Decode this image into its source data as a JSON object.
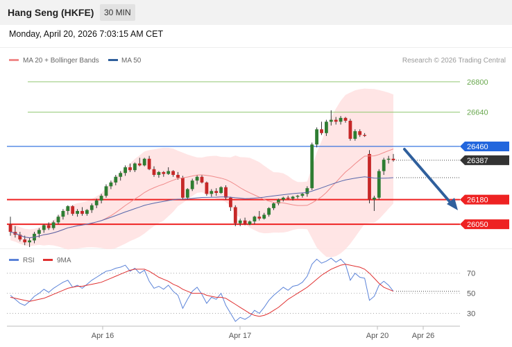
{
  "header": {
    "title": "Hang Seng (HKFE)",
    "interval": "30 MIN",
    "datetime": "Monday, April 20, 2026 7:03:15 AM CET"
  },
  "legend": {
    "bollinger": "MA 20 + Bollinger Bands",
    "ma50": "MA 50",
    "credit": "Research © 2026 Trading Central"
  },
  "rsi_legend": {
    "rsi": "RSI",
    "ma9": "9MA"
  },
  "colors": {
    "bull": "#2e7d32",
    "bear": "#c62828",
    "band_fill": "#ffe0e0",
    "ma20": "#f08a8a",
    "ma50": "#5566aa",
    "resistance": "#90c870",
    "pivot": "#2266dd",
    "support": "#ee2222",
    "arrow": "#2f5f9c",
    "rsi": "#5a82d8",
    "rsi_ma": "#e03030"
  },
  "chart_data": [
    {
      "type": "candlestick",
      "title": "Hang Seng (HKFE)",
      "ylim": [
        25930,
        26880
      ],
      "x_ticks": [
        "Apr 16",
        "Apr 17",
        "Apr 20",
        "Apr 26"
      ],
      "levels": [
        {
          "label": "26800",
          "value": 26800,
          "kind": "resistance"
        },
        {
          "label": "26640",
          "value": 26640,
          "kind": "resistance"
        },
        {
          "label": "26460",
          "value": 26460,
          "kind": "pivot"
        },
        {
          "label": "26387",
          "value": 26387,
          "kind": "last"
        },
        {
          "label": "26180",
          "value": 26180,
          "kind": "support"
        },
        {
          "label": "26050",
          "value": 26050,
          "kind": "support"
        }
      ],
      "ohlc": [
        [
          26050,
          26090,
          25990,
          26010
        ],
        [
          26010,
          26040,
          25980,
          25995
        ],
        [
          25995,
          26010,
          25960,
          25970
        ],
        [
          25970,
          25990,
          25940,
          25955
        ],
        [
          25955,
          25980,
          25930,
          25965
        ],
        [
          25965,
          26010,
          25950,
          26000
        ],
        [
          26000,
          26030,
          25980,
          26020
        ],
        [
          26020,
          26050,
          26005,
          26045
        ],
        [
          26045,
          26060,
          26020,
          26030
        ],
        [
          26030,
          26070,
          26020,
          26060
        ],
        [
          26060,
          26100,
          26050,
          26090
        ],
        [
          26090,
          26130,
          26075,
          26120
        ],
        [
          26120,
          26150,
          26100,
          26145
        ],
        [
          26145,
          26150,
          26095,
          26105
        ],
        [
          26105,
          26130,
          26090,
          26120
        ],
        [
          26120,
          26140,
          26095,
          26105
        ],
        [
          26105,
          26130,
          26095,
          26125
        ],
        [
          26125,
          26160,
          26110,
          26150
        ],
        [
          26150,
          26185,
          26135,
          26175
        ],
        [
          26175,
          26210,
          26160,
          26200
        ],
        [
          26200,
          26260,
          26190,
          26250
        ],
        [
          26250,
          26280,
          26235,
          26270
        ],
        [
          26270,
          26310,
          26255,
          26300
        ],
        [
          26300,
          26330,
          26280,
          26320
        ],
        [
          26320,
          26360,
          26305,
          26350
        ],
        [
          26350,
          26370,
          26325,
          26335
        ],
        [
          26335,
          26375,
          26325,
          26370
        ],
        [
          26370,
          26400,
          26355,
          26360
        ],
        [
          26360,
          26400,
          26355,
          26395
        ],
        [
          26395,
          26410,
          26335,
          26340
        ],
        [
          26340,
          26355,
          26300,
          26310
        ],
        [
          26310,
          26330,
          26295,
          26325
        ],
        [
          26325,
          26330,
          26300,
          26315
        ],
        [
          26315,
          26350,
          26310,
          26330
        ],
        [
          26330,
          26335,
          26300,
          26310
        ],
        [
          26310,
          26325,
          26285,
          26295
        ],
        [
          26295,
          26305,
          26180,
          26190
        ],
        [
          26190,
          26240,
          26180,
          26235
        ],
        [
          26235,
          26290,
          26225,
          26280
        ],
        [
          26280,
          26310,
          26260,
          26300
        ],
        [
          26300,
          26310,
          26265,
          26270
        ],
        [
          26270,
          26275,
          26200,
          26210
        ],
        [
          26210,
          26235,
          26195,
          26225
        ],
        [
          26225,
          26240,
          26200,
          26215
        ],
        [
          26215,
          26250,
          26210,
          26245
        ],
        [
          26245,
          26255,
          26180,
          26190
        ],
        [
          26190,
          26195,
          26120,
          26140
        ],
        [
          26140,
          26150,
          26040,
          26055
        ],
        [
          26055,
          26080,
          26040,
          26070
        ],
        [
          26070,
          26085,
          26045,
          26050
        ],
        [
          26050,
          26070,
          26045,
          26065
        ],
        [
          26065,
          26095,
          26050,
          26090
        ],
        [
          26090,
          26120,
          26070,
          26080
        ],
        [
          26080,
          26110,
          26075,
          26100
        ],
        [
          26100,
          26140,
          26090,
          26135
        ],
        [
          26135,
          26165,
          26125,
          26160
        ],
        [
          26160,
          26185,
          26150,
          26180
        ],
        [
          26180,
          26195,
          26170,
          26190
        ],
        [
          26190,
          26200,
          26180,
          26185
        ],
        [
          26185,
          26200,
          26175,
          26195
        ],
        [
          26195,
          26205,
          26185,
          26200
        ],
        [
          26200,
          26215,
          26190,
          26210
        ],
        [
          26210,
          26250,
          26195,
          26240
        ],
        [
          26240,
          26480,
          26230,
          26470
        ],
        [
          26470,
          26560,
          26455,
          26550
        ],
        [
          26550,
          26590,
          26520,
          26530
        ],
        [
          26530,
          26600,
          26515,
          26590
        ],
        [
          26590,
          26650,
          26570,
          26600
        ],
        [
          26600,
          26615,
          26575,
          26590
        ],
        [
          26590,
          26620,
          26575,
          26610
        ],
        [
          26610,
          26615,
          26585,
          26595
        ],
        [
          26595,
          26605,
          26490,
          26500
        ],
        [
          26500,
          26550,
          26490,
          26540
        ],
        [
          26540,
          26550,
          26510,
          26520
        ],
        [
          26520,
          26530,
          26510,
          26515
        ],
        [
          26420,
          26440,
          26160,
          26180
        ],
        [
          26180,
          26200,
          26120,
          26190
        ],
        [
          26190,
          26340,
          26180,
          26330
        ],
        [
          26330,
          26400,
          26310,
          26390
        ],
        [
          26390,
          26410,
          26370,
          26395
        ],
        [
          26395,
          26420,
          26380,
          26387
        ]
      ]
    },
    {
      "type": "line",
      "title": "RSI",
      "ylim": [
        20,
        85
      ],
      "y_ticks": [
        70,
        50,
        30
      ],
      "series": [
        {
          "name": "RSI",
          "values": [
            48,
            44,
            40,
            38,
            42,
            47,
            50,
            54,
            51,
            55,
            58,
            61,
            63,
            56,
            58,
            55,
            59,
            63,
            66,
            69,
            72,
            73,
            75,
            76,
            78,
            72,
            75,
            70,
            73,
            62,
            55,
            57,
            54,
            58,
            52,
            48,
            35,
            44,
            52,
            56,
            49,
            40,
            46,
            44,
            50,
            38,
            30,
            22,
            26,
            24,
            27,
            33,
            30,
            36,
            43,
            48,
            52,
            56,
            53,
            57,
            58,
            61,
            67,
            79,
            84,
            80,
            82,
            85,
            81,
            84,
            79,
            63,
            70,
            66,
            65,
            43,
            47,
            58,
            62,
            58,
            52
          ]
        },
        {
          "name": "9MA",
          "values": [
            46,
            45,
            44,
            43,
            42,
            43,
            44,
            45,
            47,
            49,
            51,
            53,
            55,
            56,
            57,
            57,
            58,
            59,
            60,
            61,
            63,
            65,
            67,
            69,
            71,
            73,
            74,
            74,
            74,
            72,
            69,
            66,
            64,
            62,
            59,
            57,
            54,
            52,
            50,
            50,
            50,
            48,
            47,
            46,
            46,
            45,
            42,
            39,
            36,
            33,
            30,
            28,
            27,
            28,
            30,
            33,
            36,
            40,
            44,
            47,
            50,
            53,
            56,
            60,
            64,
            68,
            71,
            74,
            76,
            78,
            79,
            78,
            77,
            76,
            74,
            70,
            65,
            60,
            56,
            54,
            52
          ]
        }
      ]
    }
  ]
}
